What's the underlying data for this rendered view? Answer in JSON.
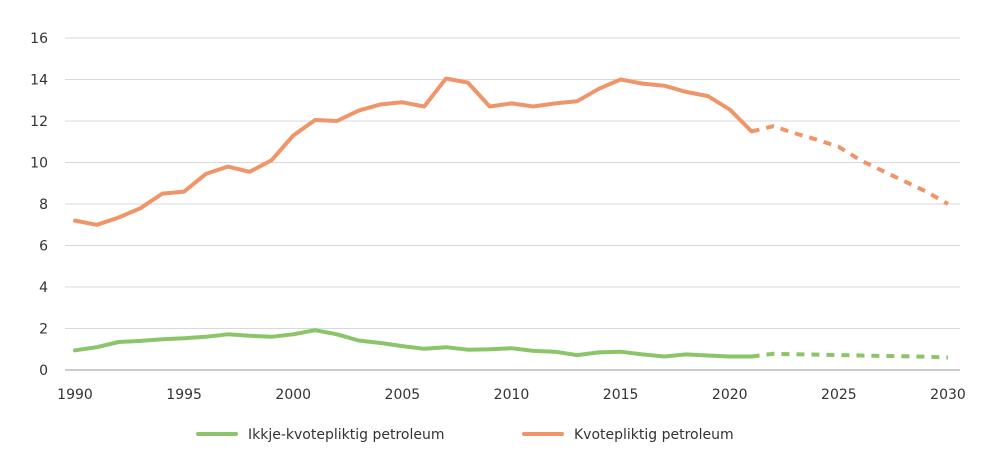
{
  "chart_data": {
    "type": "line",
    "title": "",
    "xlabel": "",
    "ylabel": "",
    "xlim": [
      1990,
      2030
    ],
    "ylim": [
      0,
      16
    ],
    "x_ticks": [
      1990,
      1995,
      2000,
      2005,
      2010,
      2015,
      2020,
      2025,
      2030
    ],
    "y_ticks": [
      0,
      2,
      4,
      6,
      8,
      10,
      12,
      14,
      16
    ],
    "grid": true,
    "legend_position": "bottom",
    "series": [
      {
        "name": "Ikkje-kvotepliktig petroleum",
        "color": "#8cc569",
        "historical": {
          "x": [
            1990,
            1991,
            1992,
            1993,
            1994,
            1995,
            1996,
            1997,
            1998,
            1999,
            2000,
            2001,
            2002,
            2003,
            2004,
            2005,
            2006,
            2007,
            2008,
            2009,
            2010,
            2011,
            2012,
            2013,
            2014,
            2015,
            2016,
            2017,
            2018,
            2019,
            2020,
            2021
          ],
          "y": [
            0.95,
            1.1,
            1.35,
            1.4,
            1.48,
            1.53,
            1.6,
            1.72,
            1.65,
            1.6,
            1.72,
            1.92,
            1.72,
            1.42,
            1.3,
            1.15,
            1.02,
            1.1,
            0.98,
            1.0,
            1.05,
            0.92,
            0.88,
            0.72,
            0.85,
            0.88,
            0.75,
            0.65,
            0.75,
            0.7,
            0.65,
            0.65
          ]
        },
        "projection": {
          "x": [
            2021,
            2022,
            2023,
            2024,
            2025,
            2026,
            2027,
            2028,
            2029,
            2030
          ],
          "y": [
            0.65,
            0.78,
            0.76,
            0.74,
            0.72,
            0.7,
            0.68,
            0.66,
            0.64,
            0.6
          ]
        }
      },
      {
        "name": "Kvotepliktig petroleum",
        "color": "#f0956a",
        "historical": {
          "x": [
            1990,
            1991,
            1992,
            1993,
            1994,
            1995,
            1996,
            1997,
            1998,
            1999,
            2000,
            2001,
            2002,
            2003,
            2004,
            2005,
            2006,
            2007,
            2008,
            2009,
            2010,
            2011,
            2012,
            2013,
            2014,
            2015,
            2016,
            2017,
            2018,
            2019,
            2020,
            2021
          ],
          "y": [
            7.2,
            7.0,
            7.35,
            7.8,
            8.5,
            8.6,
            9.45,
            9.8,
            9.55,
            10.1,
            11.3,
            12.05,
            12.0,
            12.5,
            12.8,
            12.9,
            12.7,
            14.05,
            13.85,
            12.7,
            12.85,
            12.7,
            12.85,
            12.95,
            13.55,
            14.0,
            13.8,
            13.7,
            13.4,
            13.2,
            12.55,
            11.5
          ]
        },
        "projection": {
          "x": [
            2021,
            2022,
            2023,
            2024,
            2025,
            2026,
            2027,
            2028,
            2029,
            2030
          ],
          "y": [
            11.5,
            11.75,
            11.4,
            11.1,
            10.75,
            10.1,
            9.6,
            9.1,
            8.6,
            8.0
          ]
        }
      }
    ]
  }
}
